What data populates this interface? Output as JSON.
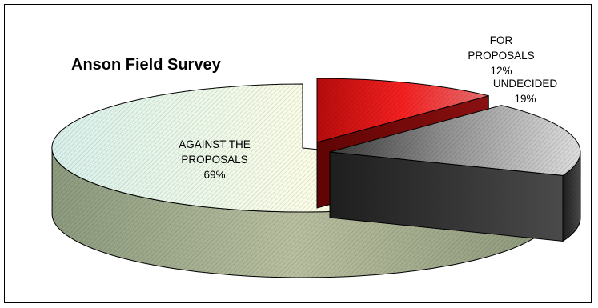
{
  "chart_data": {
    "type": "pie",
    "title": "Anson Field Survey",
    "slices": [
      {
        "label_lines": [
          "FOR",
          "PROPOSALS",
          "12%"
        ],
        "value": 12,
        "color": "#e01414",
        "exploded": true
      },
      {
        "label_lines": [
          "UNDECIDED",
          "19%"
        ],
        "value": 19,
        "color": "#555555",
        "exploded": true
      },
      {
        "label_lines": [
          "AGAINST THE",
          "PROPOSALS",
          "69%"
        ],
        "value": 69,
        "color": "#f4fbd8",
        "exploded": false
      }
    ],
    "three_d": true,
    "legend": "none"
  }
}
